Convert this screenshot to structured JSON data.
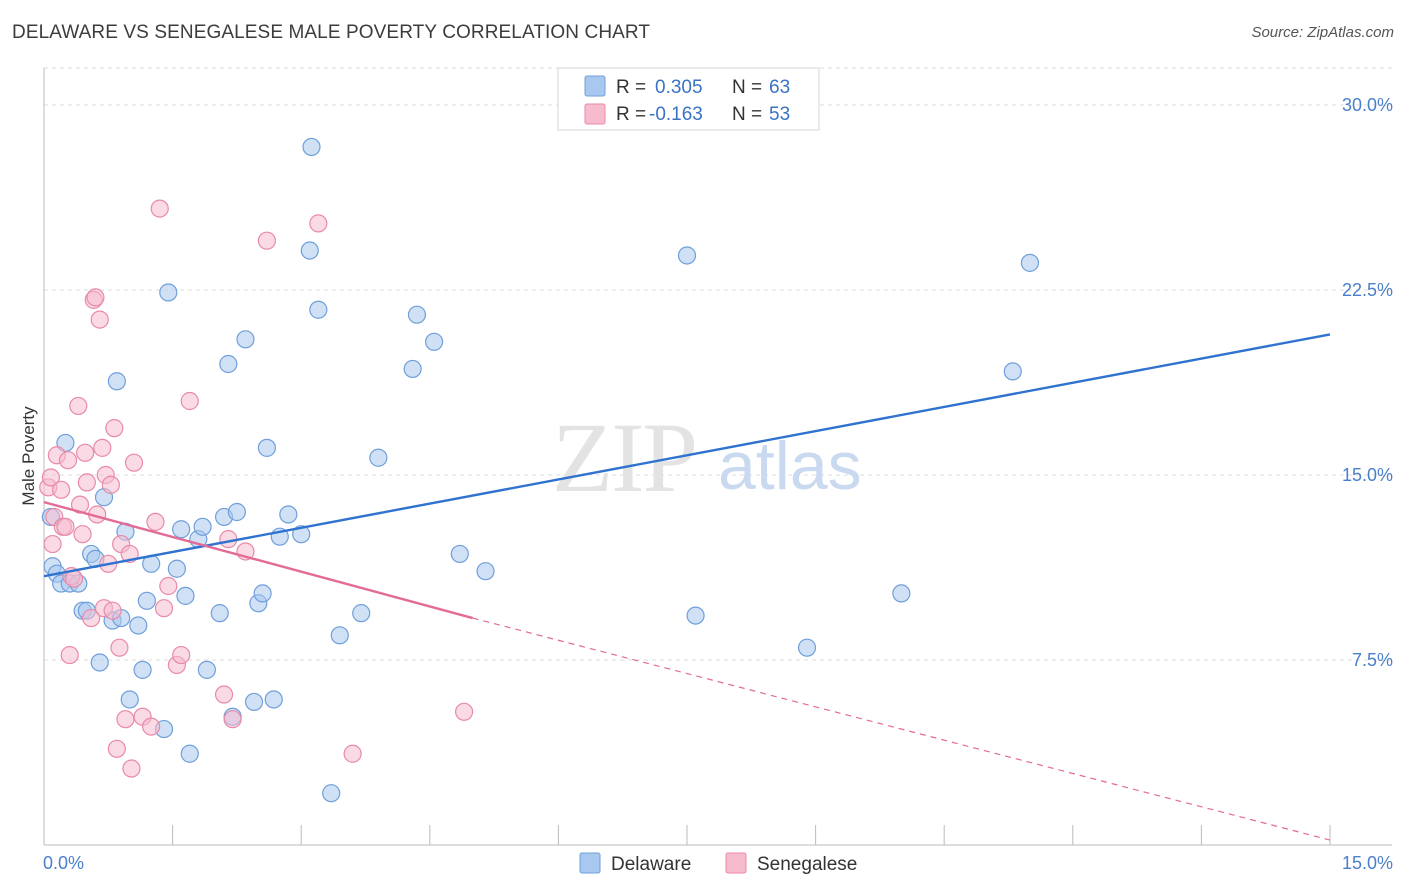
{
  "title": "DELAWARE VS SENEGALESE MALE POVERTY CORRELATION CHART",
  "source": "Source: ZipAtlas.com",
  "watermark": {
    "zip": "ZIP",
    "atlas": "atlas"
  },
  "colors": {
    "delaware_fill": "#a9c8ef",
    "delaware_stroke": "#6f9fdb",
    "delaware_line": "#2f73cf",
    "senegalese_fill": "#f6bccd",
    "senegalese_stroke": "#e98aa8",
    "senegalese_line": "#e36b97",
    "tick_text": "#4a7fc9",
    "grid": "#dddddd"
  },
  "legend": {
    "r_label": "R =",
    "n_label": "N =",
    "rows": [
      {
        "series": "Delaware",
        "r": "0.305",
        "n": "63"
      },
      {
        "series": "Senegalese",
        "r": "-0.163",
        "n": "53"
      }
    ]
  },
  "chart_data": {
    "type": "scatter",
    "title": "DELAWARE VS SENEGALESE MALE POVERTY CORRELATION CHART",
    "xlabel": "",
    "ylabel": "Male Poverty",
    "xlim": [
      0,
      15
    ],
    "ylim": [
      0,
      31.5
    ],
    "x_tick_labels": [
      "0.0%",
      "15.0%"
    ],
    "y_ticks": [
      7.5,
      15.0,
      22.5,
      30.0
    ],
    "y_tick_labels": [
      "7.5%",
      "15.0%",
      "22.5%",
      "30.0%"
    ],
    "grid": true,
    "legend_position": "top-center",
    "series": [
      {
        "name": "Delaware",
        "trend": {
          "x": [
            0.0,
            15.0
          ],
          "y": [
            10.9,
            20.7
          ]
        },
        "points": [
          [
            0.08,
            13.3
          ],
          [
            0.1,
            11.3
          ],
          [
            0.15,
            11.0
          ],
          [
            0.2,
            10.6
          ],
          [
            0.25,
            16.3
          ],
          [
            0.3,
            10.6
          ],
          [
            0.4,
            10.6
          ],
          [
            0.45,
            9.5
          ],
          [
            0.5,
            9.5
          ],
          [
            0.55,
            11.8
          ],
          [
            0.6,
            11.6
          ],
          [
            0.65,
            7.4
          ],
          [
            0.7,
            14.1
          ],
          [
            0.8,
            9.1
          ],
          [
            0.85,
            18.8
          ],
          [
            0.9,
            9.2
          ],
          [
            0.95,
            12.7
          ],
          [
            1.0,
            5.9
          ],
          [
            1.1,
            8.9
          ],
          [
            1.15,
            7.1
          ],
          [
            1.2,
            9.9
          ],
          [
            1.25,
            11.4
          ],
          [
            1.4,
            4.7
          ],
          [
            1.45,
            22.4
          ],
          [
            1.55,
            11.2
          ],
          [
            1.6,
            12.8
          ],
          [
            1.65,
            10.1
          ],
          [
            1.7,
            3.7
          ],
          [
            1.8,
            12.4
          ],
          [
            1.85,
            12.9
          ],
          [
            1.9,
            7.1
          ],
          [
            2.05,
            9.4
          ],
          [
            2.1,
            13.3
          ],
          [
            2.15,
            19.5
          ],
          [
            2.2,
            5.2
          ],
          [
            2.25,
            13.5
          ],
          [
            2.35,
            20.5
          ],
          [
            2.45,
            5.8
          ],
          [
            2.5,
            9.8
          ],
          [
            2.55,
            10.2
          ],
          [
            2.6,
            16.1
          ],
          [
            2.68,
            5.9
          ],
          [
            2.75,
            12.5
          ],
          [
            2.85,
            13.4
          ],
          [
            3.0,
            12.6
          ],
          [
            3.1,
            24.1
          ],
          [
            3.12,
            28.3
          ],
          [
            3.2,
            21.7
          ],
          [
            3.35,
            2.1
          ],
          [
            3.45,
            8.5
          ],
          [
            3.7,
            9.4
          ],
          [
            3.9,
            15.7
          ],
          [
            4.3,
            19.3
          ],
          [
            4.35,
            21.5
          ],
          [
            4.55,
            20.4
          ],
          [
            4.85,
            11.8
          ],
          [
            5.15,
            11.1
          ],
          [
            7.5,
            23.9
          ],
          [
            7.6,
            9.3
          ],
          [
            8.9,
            8.0
          ],
          [
            10.0,
            10.2
          ],
          [
            11.3,
            19.2
          ],
          [
            11.5,
            23.6
          ]
        ]
      },
      {
        "name": "Senegalese",
        "trend": {
          "x": [
            0.0,
            5.0
          ],
          "y": [
            13.9,
            9.2
          ]
        },
        "trend_dashed": {
          "x": [
            5.0,
            15.0
          ],
          "y": [
            9.2,
            0.2
          ]
        },
        "points": [
          [
            0.05,
            14.5
          ],
          [
            0.08,
            14.9
          ],
          [
            0.1,
            12.2
          ],
          [
            0.12,
            13.3
          ],
          [
            0.15,
            15.8
          ],
          [
            0.2,
            14.4
          ],
          [
            0.22,
            12.9
          ],
          [
            0.25,
            12.9
          ],
          [
            0.28,
            15.6
          ],
          [
            0.3,
            7.7
          ],
          [
            0.32,
            10.9
          ],
          [
            0.35,
            10.8
          ],
          [
            0.4,
            17.8
          ],
          [
            0.42,
            13.8
          ],
          [
            0.45,
            12.6
          ],
          [
            0.48,
            15.9
          ],
          [
            0.5,
            14.7
          ],
          [
            0.55,
            9.2
          ],
          [
            0.58,
            22.1
          ],
          [
            0.6,
            22.2
          ],
          [
            0.62,
            13.4
          ],
          [
            0.65,
            21.3
          ],
          [
            0.68,
            16.1
          ],
          [
            0.7,
            9.6
          ],
          [
            0.72,
            15.0
          ],
          [
            0.75,
            11.4
          ],
          [
            0.78,
            14.6
          ],
          [
            0.8,
            9.5
          ],
          [
            0.82,
            16.9
          ],
          [
            0.85,
            3.9
          ],
          [
            0.88,
            8.0
          ],
          [
            0.9,
            12.2
          ],
          [
            0.95,
            5.1
          ],
          [
            1.0,
            11.8
          ],
          [
            1.02,
            3.1
          ],
          [
            1.05,
            15.5
          ],
          [
            1.15,
            5.2
          ],
          [
            1.25,
            4.8
          ],
          [
            1.3,
            13.1
          ],
          [
            1.35,
            25.8
          ],
          [
            1.4,
            9.6
          ],
          [
            1.55,
            7.3
          ],
          [
            1.6,
            7.7
          ],
          [
            1.7,
            18.0
          ],
          [
            2.1,
            6.1
          ],
          [
            2.15,
            12.4
          ],
          [
            2.2,
            5.1
          ],
          [
            2.35,
            11.9
          ],
          [
            2.6,
            24.5
          ],
          [
            3.2,
            25.2
          ],
          [
            3.6,
            3.7
          ],
          [
            4.9,
            5.4
          ],
          [
            1.45,
            10.5
          ]
        ]
      }
    ]
  }
}
